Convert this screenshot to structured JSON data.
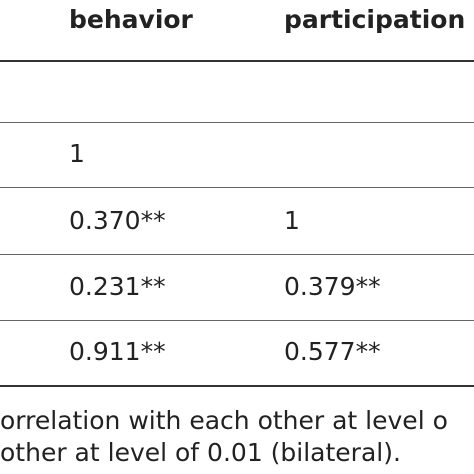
{
  "table": {
    "headers": {
      "behavior": "behavior",
      "participation": "participation"
    },
    "rows": [
      {
        "behavior": "",
        "participation": ""
      },
      {
        "behavior": "1",
        "participation": ""
      },
      {
        "behavior": "0.370**",
        "participation": "1"
      },
      {
        "behavior": "0.231**",
        "participation": "0.379**"
      },
      {
        "behavior": "0.911**",
        "participation": "0.577**"
      }
    ]
  },
  "notes": {
    "line1": "orrelation with each other at level o",
    "line2": "other at level of 0.01 (bilateral)."
  }
}
